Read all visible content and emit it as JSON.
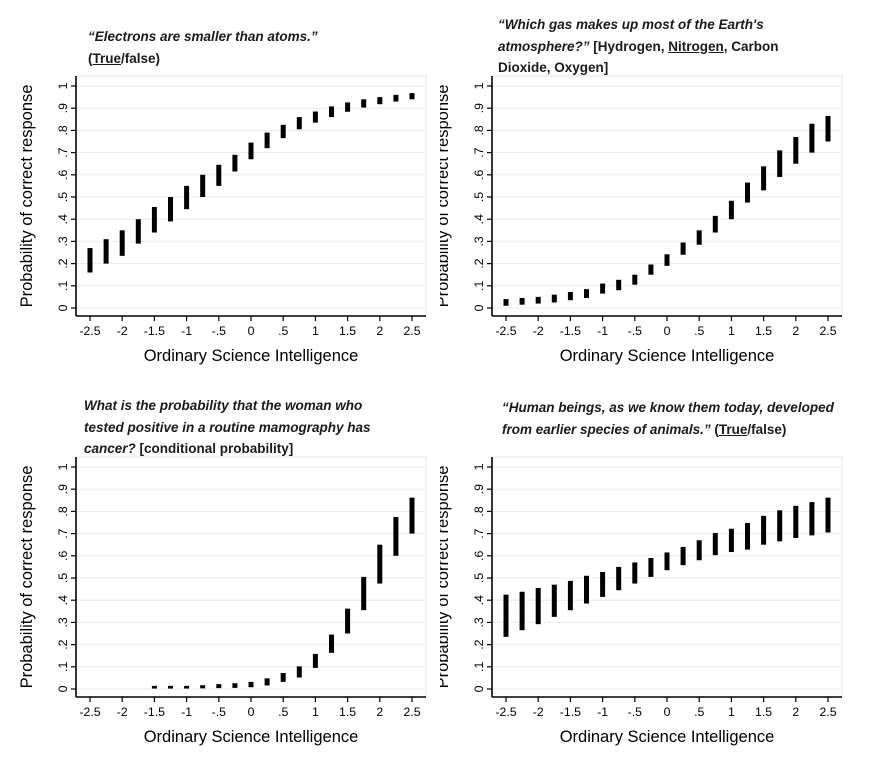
{
  "colors": {
    "background": "#ffffff",
    "bar": "#000000",
    "axis": "#000000",
    "grid": "#e4edee",
    "plot_border": "#e0e6e8",
    "title_text": "#1a1a1a",
    "tick_text": "#000000",
    "axis_label_text": "#000000"
  },
  "axes_common": {
    "xlabel": "Ordinary Science Intelligence",
    "ylabel": "Probability of correct response",
    "xlim": [
      -2.75,
      2.75
    ],
    "ylim": [
      0,
      1
    ],
    "grid": "horizontal-light",
    "x_ticks": [
      {
        "v": -2.5,
        "label": "-2.5"
      },
      {
        "v": -2,
        "label": "-2"
      },
      {
        "v": -1.5,
        "label": "-1.5"
      },
      {
        "v": -1,
        "label": "-1"
      },
      {
        "v": -0.5,
        "label": "-.5"
      },
      {
        "v": 0,
        "label": "0"
      },
      {
        "v": 0.5,
        "label": ".5"
      },
      {
        "v": 1,
        "label": "1"
      },
      {
        "v": 1.5,
        "label": "1.5"
      },
      {
        "v": 2,
        "label": "2"
      },
      {
        "v": 2.5,
        "label": "2.5"
      }
    ],
    "y_ticks": [
      {
        "v": 0,
        "label": "0"
      },
      {
        "v": 0.1,
        "label": ".1"
      },
      {
        "v": 0.2,
        "label": ".2"
      },
      {
        "v": 0.3,
        "label": ".3"
      },
      {
        "v": 0.4,
        "label": ".4"
      },
      {
        "v": 0.5,
        "label": ".5"
      },
      {
        "v": 0.6,
        "label": ".6"
      },
      {
        "v": 0.7,
        "label": ".7"
      },
      {
        "v": 0.8,
        "label": ".8"
      },
      {
        "v": 0.9,
        "label": ".9"
      },
      {
        "v": 1,
        "label": "1"
      }
    ]
  },
  "chart_data": [
    {
      "type": "interval-bar",
      "id": "electrons",
      "question_segments": [
        {
          "text": "“Electrons are smaller than atoms.”",
          "italic": true
        },
        {
          "break": true
        },
        {
          "text": "("
        },
        {
          "text": "True",
          "underline": true
        },
        {
          "text": "/false)"
        }
      ],
      "points": [
        {
          "x": -2.5,
          "lo": 0.16,
          "hi": 0.27
        },
        {
          "x": -2.25,
          "lo": 0.2,
          "hi": 0.31
        },
        {
          "x": -2.0,
          "lo": 0.235,
          "hi": 0.35
        },
        {
          "x": -1.75,
          "lo": 0.29,
          "hi": 0.4
        },
        {
          "x": -1.5,
          "lo": 0.34,
          "hi": 0.455
        },
        {
          "x": -1.25,
          "lo": 0.39,
          "hi": 0.5
        },
        {
          "x": -1.0,
          "lo": 0.445,
          "hi": 0.55
        },
        {
          "x": -0.75,
          "lo": 0.5,
          "hi": 0.6
        },
        {
          "x": -0.5,
          "lo": 0.55,
          "hi": 0.645
        },
        {
          "x": -0.25,
          "lo": 0.615,
          "hi": 0.69
        },
        {
          "x": 0.0,
          "lo": 0.67,
          "hi": 0.745
        },
        {
          "x": 0.25,
          "lo": 0.72,
          "hi": 0.79
        },
        {
          "x": 0.5,
          "lo": 0.765,
          "hi": 0.825
        },
        {
          "x": 0.75,
          "lo": 0.805,
          "hi": 0.86
        },
        {
          "x": 1.0,
          "lo": 0.835,
          "hi": 0.885
        },
        {
          "x": 1.25,
          "lo": 0.86,
          "hi": 0.908
        },
        {
          "x": 1.5,
          "lo": 0.884,
          "hi": 0.926
        },
        {
          "x": 1.75,
          "lo": 0.903,
          "hi": 0.94
        },
        {
          "x": 2.0,
          "lo": 0.918,
          "hi": 0.95
        },
        {
          "x": 2.25,
          "lo": 0.93,
          "hi": 0.96
        },
        {
          "x": 2.5,
          "lo": 0.94,
          "hi": 0.968
        }
      ]
    },
    {
      "type": "interval-bar",
      "id": "nitrogen",
      "question_segments": [
        {
          "text": "“Which gas makes up most of the Earth's",
          "italic": true
        },
        {
          "break": true
        },
        {
          "text": "atmosphere?”",
          "italic": true
        },
        {
          "text": " [Hydrogen, "
        },
        {
          "text": "Nitrogen",
          "underline": true
        },
        {
          "text": ", Carbon"
        },
        {
          "break": true
        },
        {
          "text": "Dioxide, Oxygen]"
        }
      ],
      "points": [
        {
          "x": -2.5,
          "lo": 0.01,
          "hi": 0.04
        },
        {
          "x": -2.25,
          "lo": 0.015,
          "hi": 0.045
        },
        {
          "x": -2.0,
          "lo": 0.02,
          "hi": 0.05
        },
        {
          "x": -1.75,
          "lo": 0.025,
          "hi": 0.06
        },
        {
          "x": -1.5,
          "lo": 0.035,
          "hi": 0.072
        },
        {
          "x": -1.25,
          "lo": 0.045,
          "hi": 0.085
        },
        {
          "x": -1.0,
          "lo": 0.065,
          "hi": 0.11
        },
        {
          "x": -0.75,
          "lo": 0.08,
          "hi": 0.127
        },
        {
          "x": -0.5,
          "lo": 0.105,
          "hi": 0.15
        },
        {
          "x": -0.25,
          "lo": 0.15,
          "hi": 0.196
        },
        {
          "x": 0.0,
          "lo": 0.19,
          "hi": 0.242
        },
        {
          "x": 0.25,
          "lo": 0.24,
          "hi": 0.295
        },
        {
          "x": 0.5,
          "lo": 0.285,
          "hi": 0.35
        },
        {
          "x": 0.75,
          "lo": 0.34,
          "hi": 0.415
        },
        {
          "x": 1.0,
          "lo": 0.4,
          "hi": 0.483
        },
        {
          "x": 1.25,
          "lo": 0.475,
          "hi": 0.565
        },
        {
          "x": 1.5,
          "lo": 0.53,
          "hi": 0.638
        },
        {
          "x": 1.75,
          "lo": 0.59,
          "hi": 0.71
        },
        {
          "x": 2.0,
          "lo": 0.65,
          "hi": 0.77
        },
        {
          "x": 2.25,
          "lo": 0.7,
          "hi": 0.83
        },
        {
          "x": 2.5,
          "lo": 0.75,
          "hi": 0.865
        }
      ]
    },
    {
      "type": "interval-bar",
      "id": "mamography",
      "question_segments": [
        {
          "text": "What is the probability that the woman who",
          "italic": true
        },
        {
          "break": true
        },
        {
          "text": "tested positive in a routine mamography has",
          "italic": true
        },
        {
          "break": true
        },
        {
          "text": "cancer?",
          "italic": true
        },
        {
          "text": " [conditional probability]"
        }
      ],
      "points": [
        {
          "x": -1.5,
          "lo": 0.002,
          "hi": 0.014
        },
        {
          "x": -1.25,
          "lo": 0.002,
          "hi": 0.014
        },
        {
          "x": -1.0,
          "lo": 0.002,
          "hi": 0.014
        },
        {
          "x": -0.75,
          "lo": 0.003,
          "hi": 0.017
        },
        {
          "x": -0.5,
          "lo": 0.004,
          "hi": 0.022
        },
        {
          "x": -0.25,
          "lo": 0.005,
          "hi": 0.026
        },
        {
          "x": 0.0,
          "lo": 0.008,
          "hi": 0.032
        },
        {
          "x": 0.25,
          "lo": 0.016,
          "hi": 0.048
        },
        {
          "x": 0.5,
          "lo": 0.032,
          "hi": 0.072
        },
        {
          "x": 0.75,
          "lo": 0.052,
          "hi": 0.102
        },
        {
          "x": 1.0,
          "lo": 0.095,
          "hi": 0.158
        },
        {
          "x": 1.25,
          "lo": 0.163,
          "hi": 0.245
        },
        {
          "x": 1.5,
          "lo": 0.25,
          "hi": 0.362
        },
        {
          "x": 1.75,
          "lo": 0.355,
          "hi": 0.505
        },
        {
          "x": 2.0,
          "lo": 0.475,
          "hi": 0.65
        },
        {
          "x": 2.25,
          "lo": 0.6,
          "hi": 0.775
        },
        {
          "x": 2.5,
          "lo": 0.7,
          "hi": 0.862
        }
      ]
    },
    {
      "type": "interval-bar",
      "id": "evolution",
      "question_segments": [
        {
          "text": "“Human beings, as we know them today, developed",
          "italic": true
        },
        {
          "break": true
        },
        {
          "text": "from earlier species of animals.”",
          "italic": true
        },
        {
          "text": " ("
        },
        {
          "text": "True",
          "underline": true
        },
        {
          "text": "/false)"
        }
      ],
      "points": [
        {
          "x": -2.5,
          "lo": 0.235,
          "hi": 0.425
        },
        {
          "x": -2.25,
          "lo": 0.265,
          "hi": 0.438
        },
        {
          "x": -2.0,
          "lo": 0.292,
          "hi": 0.455
        },
        {
          "x": -1.75,
          "lo": 0.325,
          "hi": 0.47
        },
        {
          "x": -1.5,
          "lo": 0.355,
          "hi": 0.487
        },
        {
          "x": -1.25,
          "lo": 0.385,
          "hi": 0.51
        },
        {
          "x": -1.0,
          "lo": 0.415,
          "hi": 0.527
        },
        {
          "x": -0.75,
          "lo": 0.445,
          "hi": 0.55
        },
        {
          "x": -0.5,
          "lo": 0.475,
          "hi": 0.57
        },
        {
          "x": -0.25,
          "lo": 0.505,
          "hi": 0.59
        },
        {
          "x": 0.0,
          "lo": 0.535,
          "hi": 0.615
        },
        {
          "x": 0.25,
          "lo": 0.558,
          "hi": 0.64
        },
        {
          "x": 0.5,
          "lo": 0.58,
          "hi": 0.67
        },
        {
          "x": 0.75,
          "lo": 0.603,
          "hi": 0.703
        },
        {
          "x": 1.0,
          "lo": 0.617,
          "hi": 0.722
        },
        {
          "x": 1.25,
          "lo": 0.628,
          "hi": 0.748
        },
        {
          "x": 1.5,
          "lo": 0.65,
          "hi": 0.78
        },
        {
          "x": 1.75,
          "lo": 0.665,
          "hi": 0.805
        },
        {
          "x": 2.0,
          "lo": 0.68,
          "hi": 0.825
        },
        {
          "x": 2.25,
          "lo": 0.692,
          "hi": 0.842
        },
        {
          "x": 2.5,
          "lo": 0.705,
          "hi": 0.862
        }
      ]
    }
  ]
}
